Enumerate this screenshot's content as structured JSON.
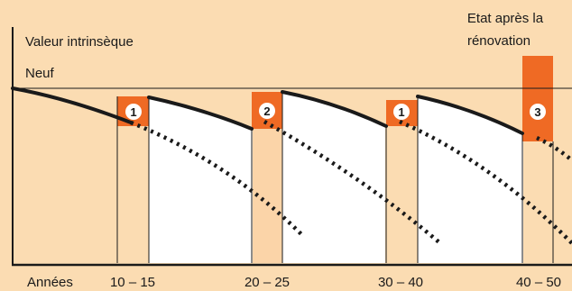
{
  "chart_data": {
    "type": "line",
    "title": "",
    "ylabel": "Valeur intrinsèque",
    "xlabel": "Années",
    "reference_line_label": "Neuf",
    "annotation": {
      "line1": "Etat après la",
      "line2": "rénovation"
    },
    "x_tick_labels": [
      "10 – 15",
      "20 – 25",
      "30 – 40",
      "40 – 50"
    ],
    "renovation_markers": [
      "1",
      "2",
      "1",
      "3"
    ],
    "grid": false,
    "legend": "none"
  },
  "colors": {
    "background": "#fbdcb2",
    "plot_white": "#ffffff",
    "accent_orange": "#ef6a24",
    "light_orange": "#fbd4a8",
    "ink": "#1a1a1a"
  }
}
